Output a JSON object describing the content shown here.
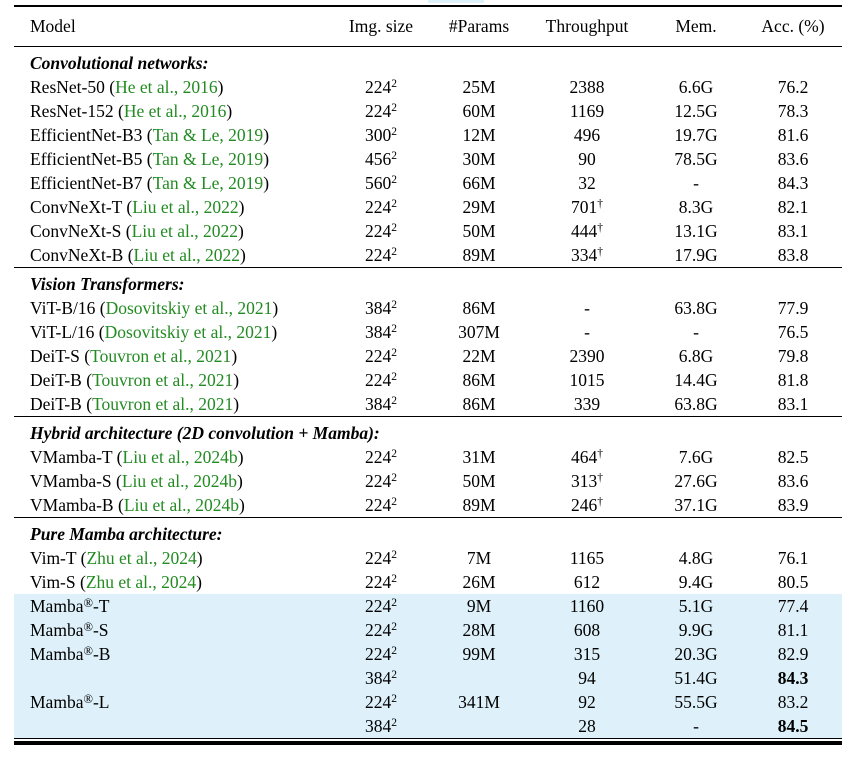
{
  "colors": {
    "citation_green": "#228B22",
    "highlight_blue": "#def0f9",
    "rule_black": "#000000"
  },
  "table": {
    "columns": [
      "Model",
      "Img. size",
      "#Params",
      "Throughput",
      "Mem.",
      "Acc. (%)"
    ],
    "sections": [
      {
        "title": "Convolutional networks:",
        "rows": [
          {
            "model": "ResNet-50",
            "citation": "He et al., 2016",
            "img": "224",
            "img_exp": "2",
            "params": "25M",
            "throughput": "2388",
            "mem": "6.6G",
            "acc": "76.2"
          },
          {
            "model": "ResNet-152",
            "citation": "He et al., 2016",
            "img": "224",
            "img_exp": "2",
            "params": "60M",
            "throughput": "1169",
            "mem": "12.5G",
            "acc": "78.3"
          },
          {
            "model": "EfficientNet-B3",
            "citation": "Tan & Le, 2019",
            "img": "300",
            "img_exp": "2",
            "params": "12M",
            "throughput": "496",
            "mem": "19.7G",
            "acc": "81.6"
          },
          {
            "model": "EfficientNet-B5",
            "citation": "Tan & Le, 2019",
            "img": "456",
            "img_exp": "2",
            "params": "30M",
            "throughput": "90",
            "mem": "78.5G",
            "acc": "83.6"
          },
          {
            "model": "EfficientNet-B7",
            "citation": "Tan & Le, 2019",
            "img": "560",
            "img_exp": "2",
            "params": "66M",
            "throughput": "32",
            "mem": "-",
            "acc": "84.3"
          },
          {
            "model": "ConvNeXt-T",
            "citation": "Liu et al., 2022",
            "img": "224",
            "img_exp": "2",
            "params": "29M",
            "throughput": "701",
            "throughput_sup": "†",
            "mem": "8.3G",
            "acc": "82.1"
          },
          {
            "model": "ConvNeXt-S",
            "citation": "Liu et al., 2022",
            "img": "224",
            "img_exp": "2",
            "params": "50M",
            "throughput": "444",
            "throughput_sup": "†",
            "mem": "13.1G",
            "acc": "83.1"
          },
          {
            "model": "ConvNeXt-B",
            "citation": "Liu et al., 2022",
            "img": "224",
            "img_exp": "2",
            "params": "89M",
            "throughput": "334",
            "throughput_sup": "†",
            "mem": "17.9G",
            "acc": "83.8"
          }
        ]
      },
      {
        "title": "Vision Transformers:",
        "rows": [
          {
            "model": "ViT-B/16",
            "citation": "Dosovitskiy et al., 2021",
            "img": "384",
            "img_exp": "2",
            "params": "86M",
            "throughput": "-",
            "mem": "63.8G",
            "acc": "77.9"
          },
          {
            "model": "ViT-L/16",
            "citation": "Dosovitskiy et al., 2021",
            "img": "384",
            "img_exp": "2",
            "params": "307M",
            "throughput": "-",
            "mem": "-",
            "acc": "76.5"
          },
          {
            "model": "DeiT-S",
            "citation": "Touvron et al., 2021",
            "img": "224",
            "img_exp": "2",
            "params": "22M",
            "throughput": "2390",
            "mem": "6.8G",
            "acc": "79.8"
          },
          {
            "model": "DeiT-B",
            "citation": "Touvron et al., 2021",
            "img": "224",
            "img_exp": "2",
            "params": "86M",
            "throughput": "1015",
            "mem": "14.4G",
            "acc": "81.8"
          },
          {
            "model": "DeiT-B",
            "citation": "Touvron et al., 2021",
            "img": "384",
            "img_exp": "2",
            "params": "86M",
            "throughput": "339",
            "mem": "63.8G",
            "acc": "83.1"
          }
        ]
      },
      {
        "title": "Hybrid architecture (2D convolution + Mamba):",
        "rows": [
          {
            "model": "VMamba-T",
            "citation": "Liu et al., 2024b",
            "img": "224",
            "img_exp": "2",
            "params": "31M",
            "throughput": "464",
            "throughput_sup": "†",
            "mem": "7.6G",
            "acc": "82.5"
          },
          {
            "model": "VMamba-S",
            "citation": "Liu et al., 2024b",
            "img": "224",
            "img_exp": "2",
            "params": "50M",
            "throughput": "313",
            "throughput_sup": "†",
            "mem": "27.6G",
            "acc": "83.6"
          },
          {
            "model": "VMamba-B",
            "citation": "Liu et al., 2024b",
            "img": "224",
            "img_exp": "2",
            "params": "89M",
            "throughput": "246",
            "throughput_sup": "†",
            "mem": "37.1G",
            "acc": "83.9"
          }
        ]
      },
      {
        "title": "Pure Mamba architecture:",
        "rows": [
          {
            "model": "Vim-T",
            "citation": "Zhu et al., 2024",
            "img": "224",
            "img_exp": "2",
            "params": "7M",
            "throughput": "1165",
            "mem": "4.8G",
            "acc": "76.1"
          },
          {
            "model": "Vim-S",
            "citation": "Zhu et al., 2024",
            "img": "224",
            "img_exp": "2",
            "params": "26M",
            "throughput": "612",
            "mem": "9.4G",
            "acc": "80.5"
          },
          {
            "model": "Mamba",
            "model_sup": "®",
            "model_rest": "-T",
            "img": "224",
            "img_exp": "2",
            "params": "9M",
            "throughput": "1160",
            "mem": "5.1G",
            "acc": "77.4",
            "highlight": true
          },
          {
            "model": "Mamba",
            "model_sup": "®",
            "model_rest": "-S",
            "img": "224",
            "img_exp": "2",
            "params": "28M",
            "throughput": "608",
            "mem": "9.9G",
            "acc": "81.1",
            "highlight": true
          },
          {
            "model": "Mamba",
            "model_sup": "®",
            "model_rest": "-B",
            "img": "224",
            "img_exp": "2",
            "params": "99M",
            "throughput": "315",
            "mem": "20.3G",
            "acc": "82.9",
            "highlight": true
          },
          {
            "model": "",
            "img": "384",
            "img_exp": "2",
            "params": "",
            "throughput": "94",
            "mem": "51.4G",
            "acc": "84.3",
            "acc_bold": true,
            "highlight": true
          },
          {
            "model": "Mamba",
            "model_sup": "®",
            "model_rest": "-L",
            "img": "224",
            "img_exp": "2",
            "params": "341M",
            "throughput": "92",
            "mem": "55.5G",
            "acc": "83.2",
            "highlight": true
          },
          {
            "model": "",
            "img": "384",
            "img_exp": "2",
            "params": "",
            "throughput": "28",
            "mem": "-",
            "acc": "84.5",
            "acc_bold": true,
            "highlight": true
          }
        ]
      }
    ]
  }
}
